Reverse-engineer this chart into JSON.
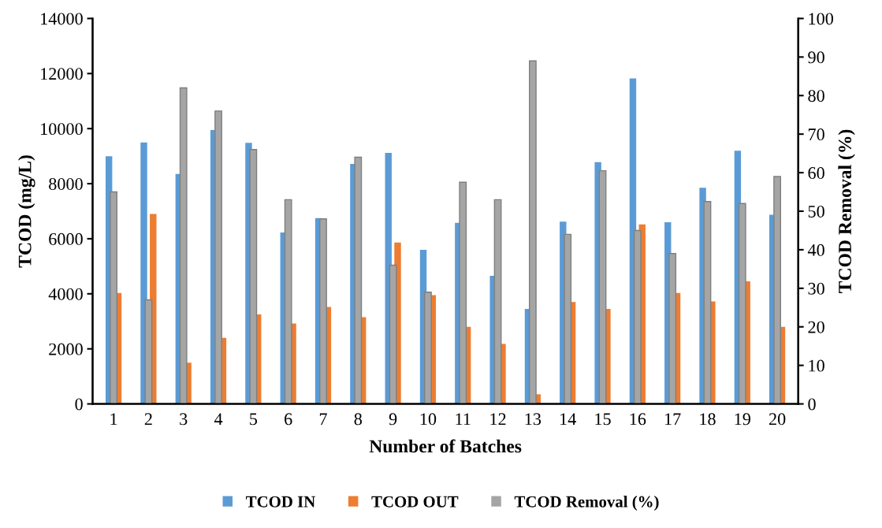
{
  "chart_data": {
    "type": "bar",
    "xlabel": "Number of Batches",
    "ylabel": "TCOD (mg/L)",
    "y2label": "TCOD Removal (%)",
    "categories": [
      "1",
      "2",
      "3",
      "4",
      "5",
      "6",
      "7",
      "8",
      "9",
      "10",
      "11",
      "12",
      "13",
      "14",
      "15",
      "16",
      "17",
      "18",
      "19",
      "20"
    ],
    "series": [
      {
        "name": "TCOD IN",
        "color": "#5b9bd5",
        "values": [
          9000,
          9500,
          8350,
          9950,
          9480,
          6230,
          6750,
          8720,
          9120,
          5600,
          6580,
          4650,
          3450,
          6620,
          8780,
          11820,
          6600,
          7850,
          9200,
          6870
        ]
      },
      {
        "name": "TCOD OUT",
        "color": "#ed7d31",
        "values": [
          4030,
          6900,
          1500,
          2400,
          3250,
          2920,
          3520,
          3150,
          5860,
          3950,
          2800,
          2180,
          350,
          3700,
          3450,
          6520,
          4030,
          3720,
          4450,
          2800
        ]
      },
      {
        "name": "TCOD Removal (%)",
        "color": "#a5a5a5",
        "axis": "y2",
        "values": [
          55,
          27,
          82,
          76,
          66,
          53,
          48,
          64,
          36,
          29,
          57.5,
          53,
          89,
          44,
          60.5,
          45,
          39,
          52.5,
          52,
          59
        ]
      }
    ],
    "ylim": [
      0,
      14000
    ],
    "yticks": [
      0,
      2000,
      4000,
      6000,
      8000,
      10000,
      12000,
      14000
    ],
    "y2lim": [
      0,
      100
    ],
    "y2ticks": [
      0,
      10,
      20,
      30,
      40,
      50,
      60,
      70,
      80,
      90,
      100
    ],
    "grid": false,
    "legend": "bottom"
  }
}
